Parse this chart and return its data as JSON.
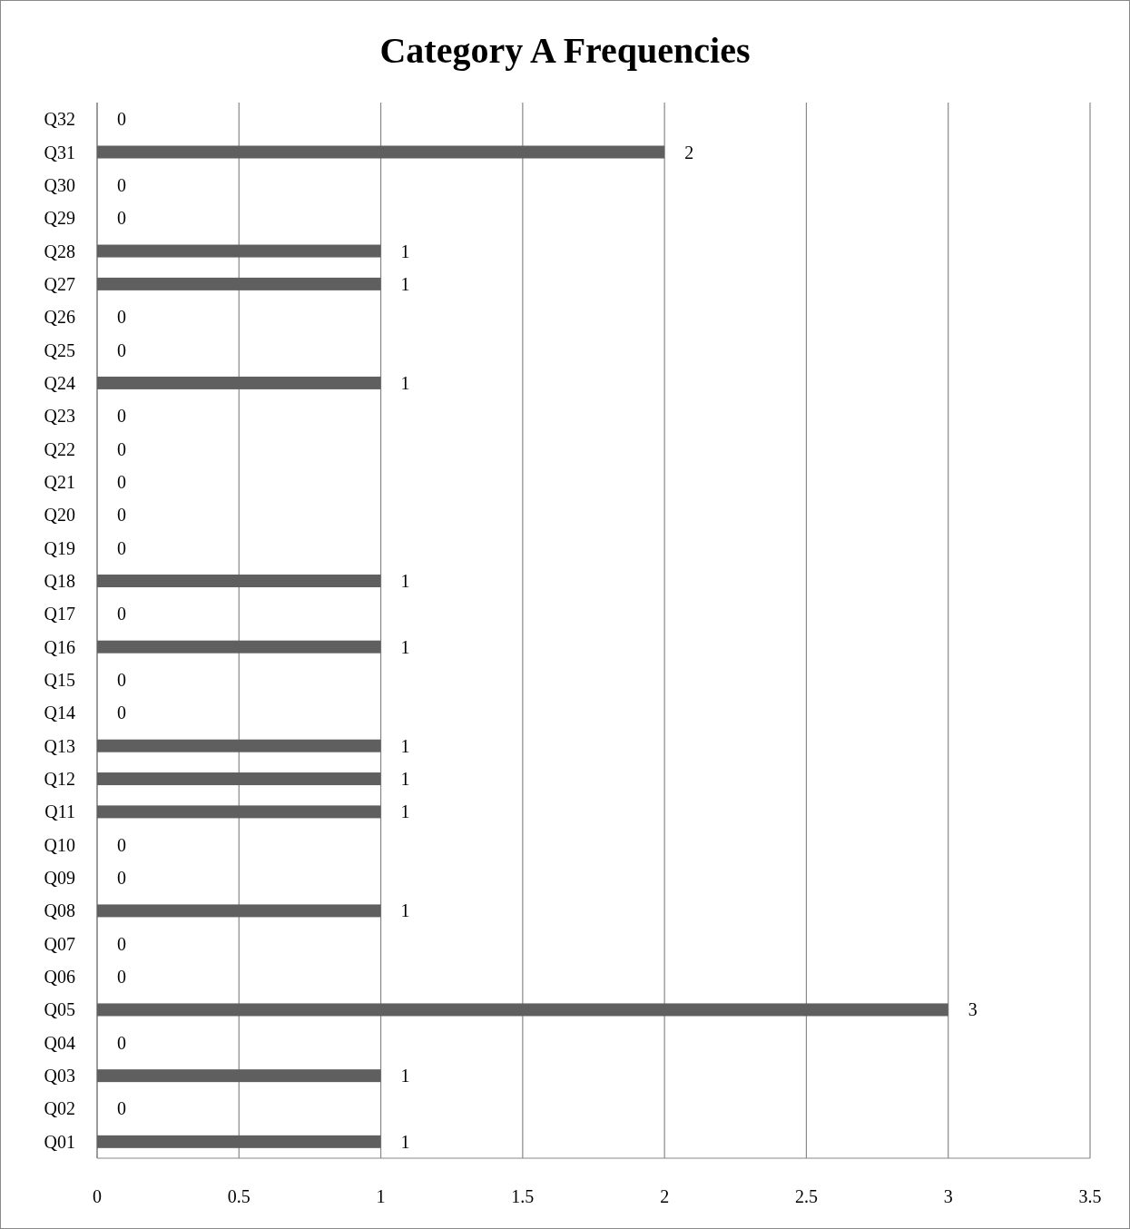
{
  "chart_data": {
    "type": "bar",
    "orientation": "horizontal",
    "title": "Category A Frequencies",
    "categories": [
      "Q32",
      "Q31",
      "Q30",
      "Q29",
      "Q28",
      "Q27",
      "Q26",
      "Q25",
      "Q24",
      "Q23",
      "Q22",
      "Q21",
      "Q20",
      "Q19",
      "Q18",
      "Q17",
      "Q16",
      "Q15",
      "Q14",
      "Q13",
      "Q12",
      "Q11",
      "Q10",
      "Q09",
      "Q08",
      "Q07",
      "Q06",
      "Q05",
      "Q04",
      "Q03",
      "Q02",
      "Q01"
    ],
    "values": [
      0,
      2,
      0,
      0,
      1,
      1,
      0,
      0,
      1,
      0,
      0,
      0,
      0,
      0,
      1,
      0,
      1,
      0,
      0,
      1,
      1,
      1,
      0,
      0,
      1,
      0,
      0,
      3,
      0,
      1,
      0,
      1
    ],
    "color": "#5f5f5f",
    "xlim": [
      0,
      3.5
    ],
    "xticks": [
      0,
      0.5,
      1,
      1.5,
      2,
      2.5,
      3,
      3.5
    ],
    "grid": "x",
    "data_labels": true
  }
}
